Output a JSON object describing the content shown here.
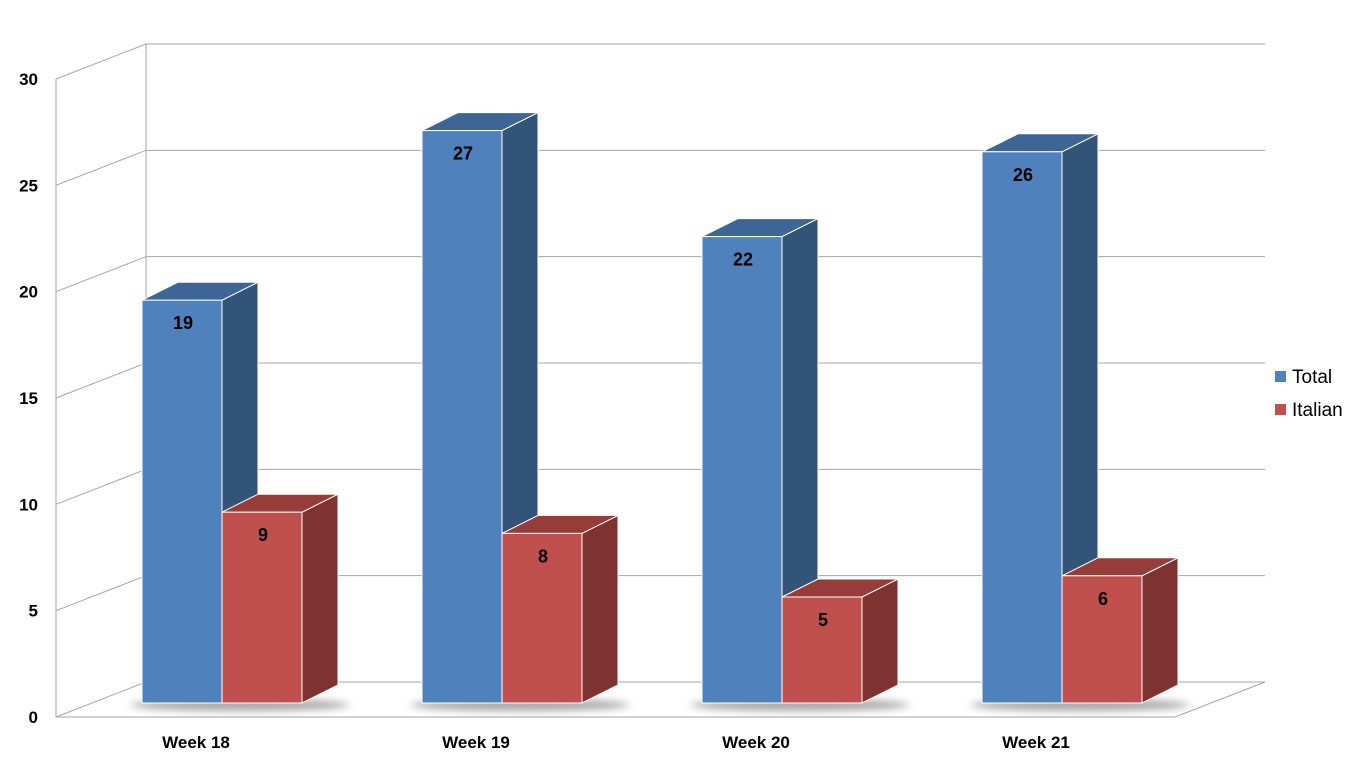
{
  "chart_data": {
    "type": "bar",
    "style": "3d-clustered-column",
    "title": "",
    "xlabel": "",
    "ylabel": "",
    "categories": [
      "Week 18",
      "Week 19",
      "Week 20",
      "Week 21"
    ],
    "series": [
      {
        "name": "Total",
        "values": [
          19,
          27,
          22,
          26
        ],
        "color": "#4F81BD",
        "side_color": "#335479",
        "top_color": "#3D6595"
      },
      {
        "name": "Italian",
        "values": [
          9,
          8,
          5,
          6
        ],
        "color": "#C0504D",
        "side_color": "#7E3331",
        "top_color": "#963D3A"
      }
    ],
    "yticks": [
      "0",
      "5",
      "10",
      "15",
      "20",
      "25",
      "30"
    ],
    "ylim": [
      0,
      30
    ],
    "grid": true,
    "data_labels": true,
    "legend_position": "right"
  }
}
